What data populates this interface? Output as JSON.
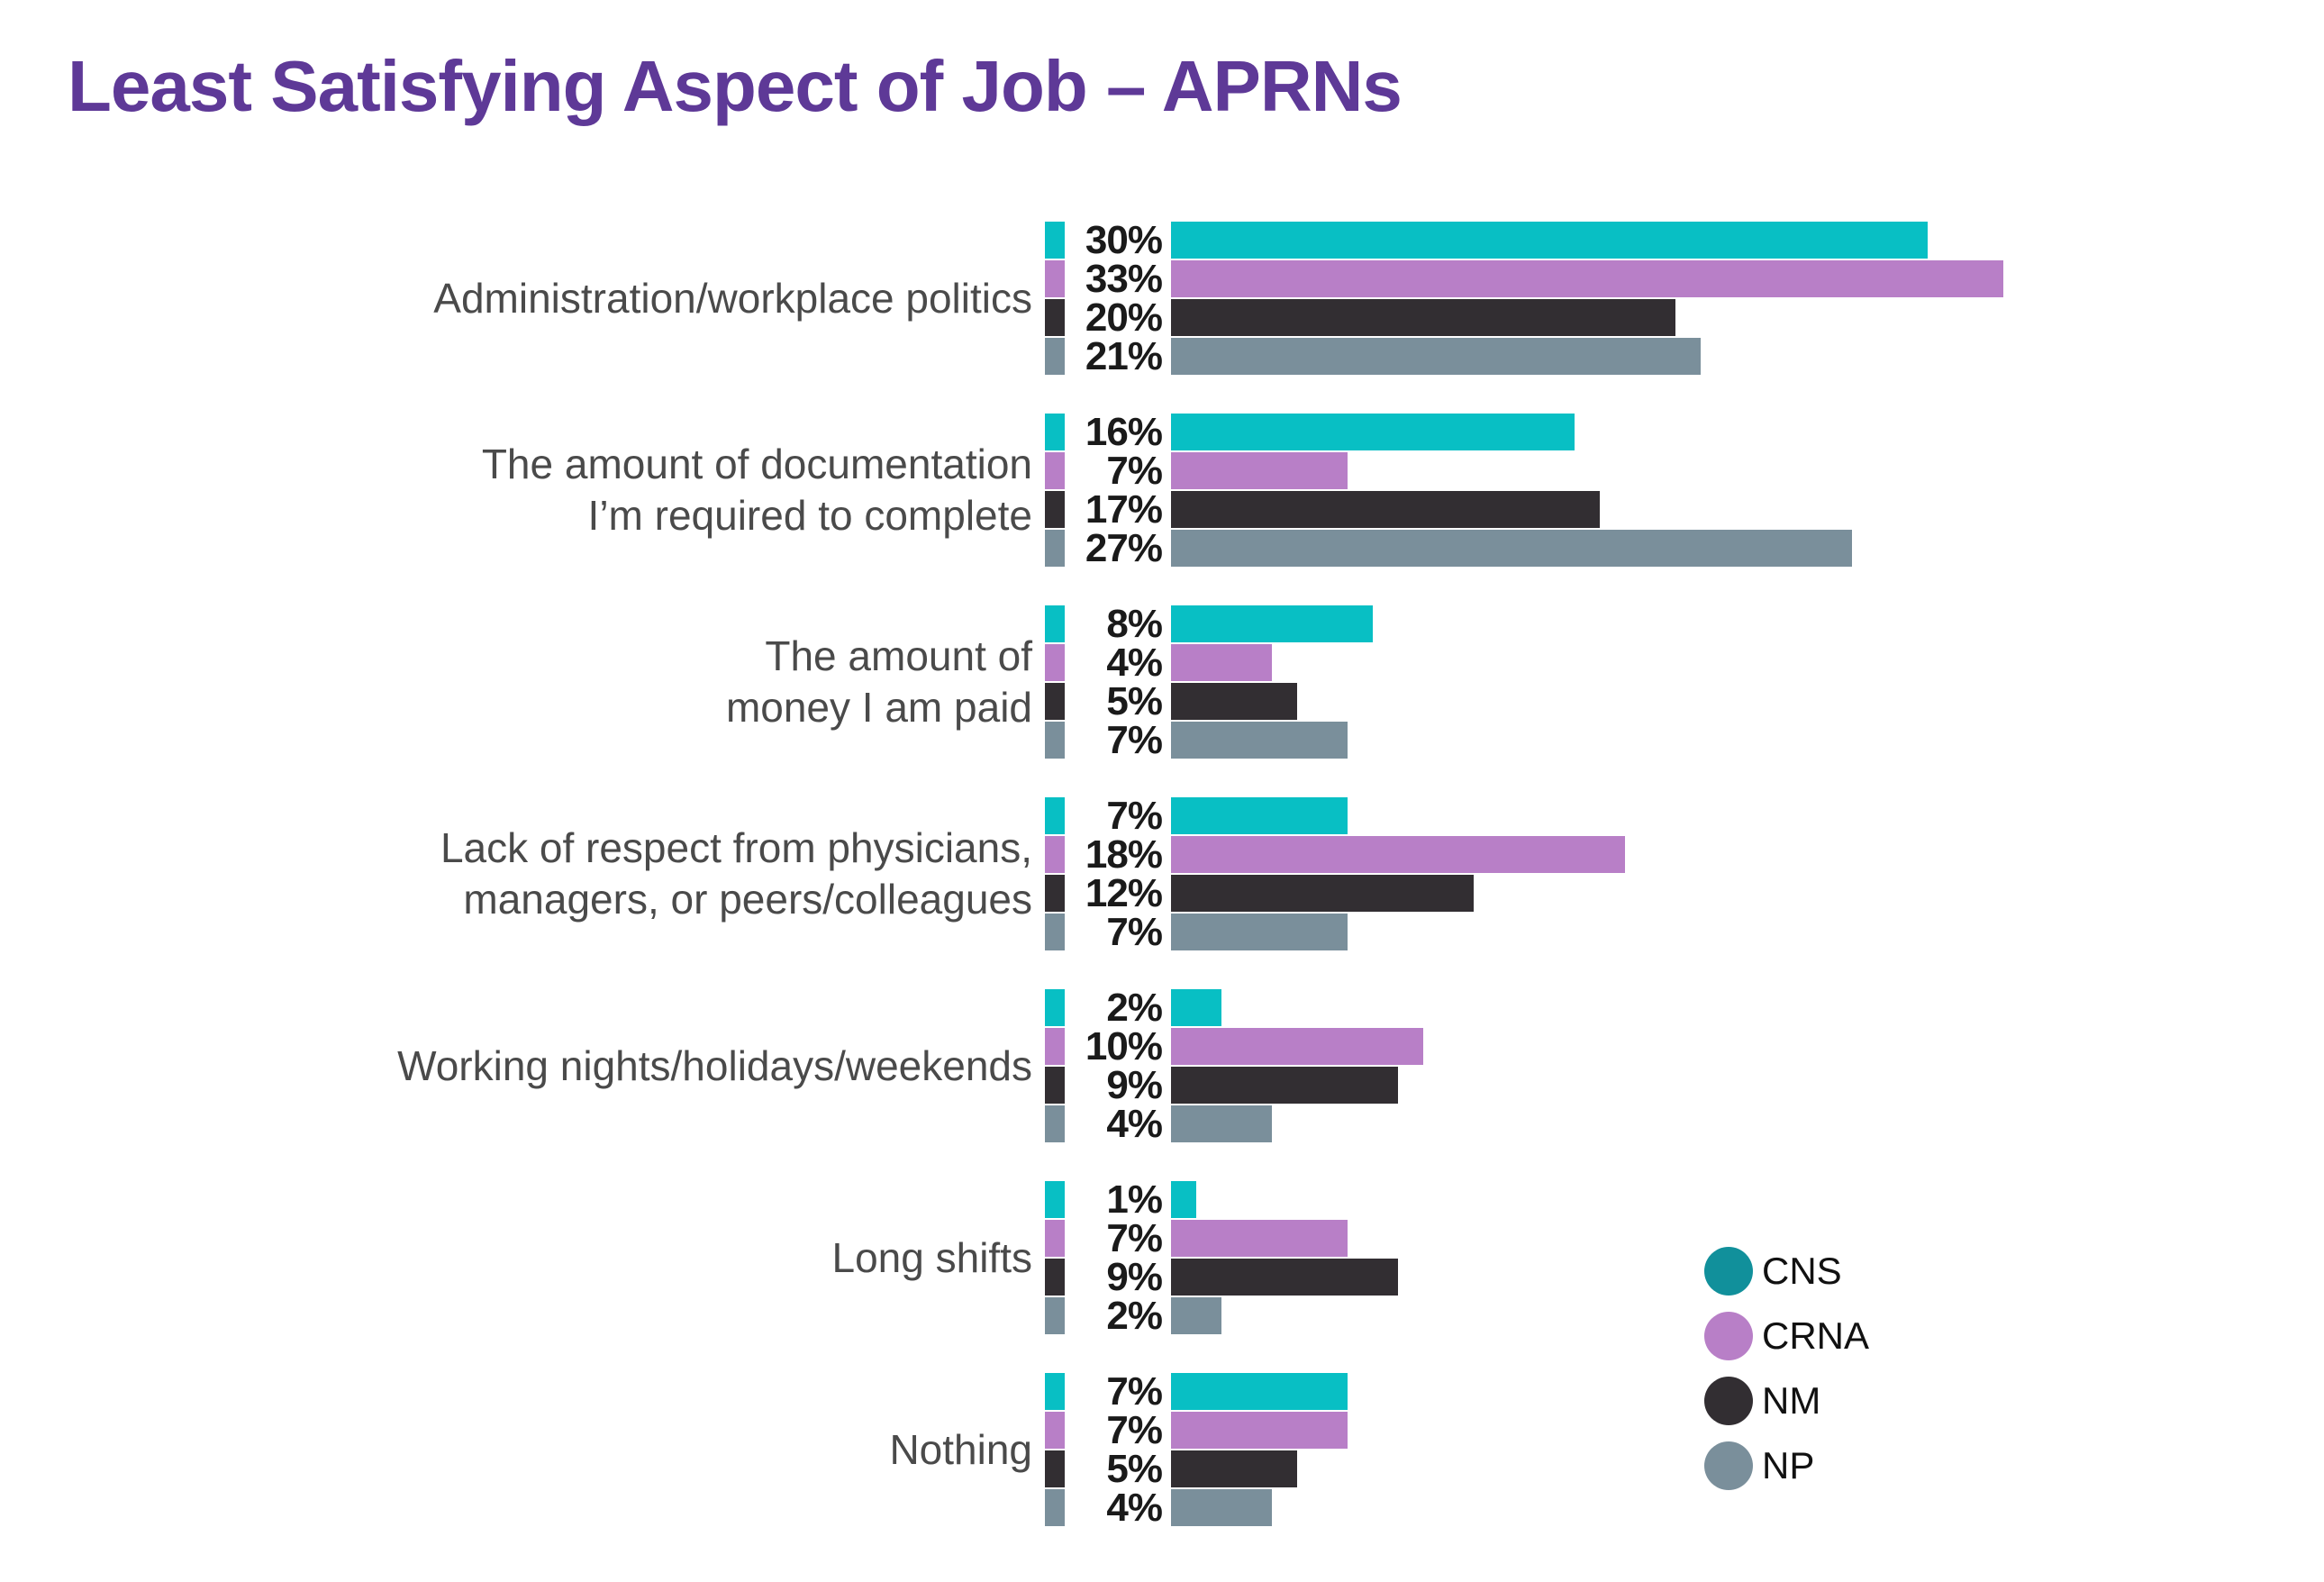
{
  "title": "Least Satisfying Aspect of Job – APRNs",
  "colors": {
    "title": "#5E3997",
    "category_text": "#4A4A4A",
    "value_text": "#1A1A1A",
    "legend_text": "#111111",
    "background": "#FFFFFF"
  },
  "chart_data": {
    "type": "bar",
    "orientation": "horizontal",
    "title": "Least Satisfying Aspect of Job – APRNs",
    "value_label_format": "{v}%",
    "xlim": [
      0,
      35
    ],
    "grid": false,
    "legend_position": "right-bottom",
    "categories": [
      "Administration/workplace politics",
      "The amount of documentation I’m required to complete",
      "The amount of money I am paid",
      "Lack of respect from physicians, managers, or peers/colleagues",
      "Working nights/holidays/weekends",
      "Long shifts",
      "Nothing"
    ],
    "category_lines": [
      [
        "Administration/workplace politics"
      ],
      [
        "The amount of documentation",
        "I’m required to complete"
      ],
      [
        "The amount of",
        "money I am paid"
      ],
      [
        "Lack of respect from physicians,",
        "managers, or peers/colleagues"
      ],
      [
        "Working nights/holidays/weekends"
      ],
      [
        "Long shifts"
      ],
      [
        "Nothing"
      ]
    ],
    "series": [
      {
        "name": "CNS",
        "bar_color": "#08BFC4",
        "legend_color": "#11909B",
        "values": [
          30,
          16,
          8,
          7,
          2,
          1,
          7
        ]
      },
      {
        "name": "CRNA",
        "bar_color": "#B87FC7",
        "legend_color": "#B87FC7",
        "values": [
          33,
          7,
          4,
          18,
          10,
          7,
          7
        ]
      },
      {
        "name": "NM",
        "bar_color": "#322E32",
        "legend_color": "#322E32",
        "values": [
          20,
          17,
          5,
          12,
          9,
          9,
          5
        ]
      },
      {
        "name": "NP",
        "bar_color": "#7A8F9B",
        "legend_color": "#7A8F9B",
        "values": [
          21,
          27,
          7,
          7,
          4,
          2,
          4
        ]
      }
    ]
  },
  "legend": {
    "items": [
      {
        "label": "CNS",
        "color": "#11909B"
      },
      {
        "label": "CRNA",
        "color": "#B87FC7"
      },
      {
        "label": "NM",
        "color": "#322E32"
      },
      {
        "label": "NP",
        "color": "#7A8F9B"
      }
    ]
  }
}
